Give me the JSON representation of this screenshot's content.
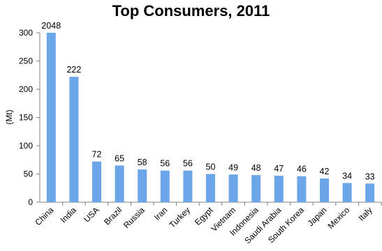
{
  "chart_data": {
    "type": "bar",
    "title": "Top Consumers, 2011",
    "ylabel": "(Mt)",
    "xlabel": "",
    "ylim": [
      0,
      300
    ],
    "yticks": [
      0,
      50,
      100,
      150,
      200,
      250,
      300
    ],
    "grid": false,
    "bar_color": "#6aa6e8",
    "categories": [
      "China",
      "India",
      "USA",
      "Brazil",
      "Russia",
      "Iran",
      "Turkey",
      "Egypt",
      "Vietnam",
      "Indonesia",
      "Saudi Arabia",
      "South Korea",
      "Japan",
      "Mexico",
      "Italy"
    ],
    "values": [
      2048,
      222,
      72,
      65,
      58,
      56,
      56,
      50,
      49,
      48,
      47,
      46,
      42,
      34,
      33
    ],
    "data_labels": [
      "2048",
      "222",
      "72",
      "65",
      "58",
      "56",
      "56",
      "50",
      "49",
      "48",
      "47",
      "46",
      "42",
      "34",
      "33"
    ],
    "notes": "China bar is truncated at the 300 axis maximum; its value label reads 2048."
  }
}
